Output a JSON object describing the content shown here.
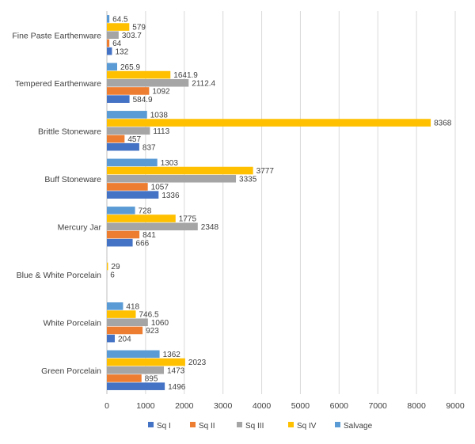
{
  "chart_data": {
    "type": "bar",
    "orientation": "horizontal",
    "categories": [
      "Fine Paste Earthenware",
      "Tempered Earthenware",
      "Brittle Stoneware",
      "Buff Stoneware",
      "Mercury Jar",
      "Blue & White Porcelain",
      "White Porcelain",
      "Green Porcelain"
    ],
    "series": [
      {
        "name": "Sq I",
        "color": "#4472C4",
        "values": [
          132,
          584.9,
          837,
          1336,
          666,
          null,
          204,
          1496
        ],
        "labels": [
          "132",
          "584.9",
          "837",
          "1336",
          "666",
          "",
          "204",
          "1496"
        ]
      },
      {
        "name": "Sq II",
        "color": "#ED7D31",
        "values": [
          64,
          1092,
          457,
          1057,
          841,
          null,
          923,
          895
        ],
        "labels": [
          "64",
          "1092",
          "457",
          "1057",
          "841",
          "",
          "923",
          "895"
        ]
      },
      {
        "name": "Sq III",
        "color": "#A5A5A5",
        "values": [
          303.7,
          2112.4,
          1113,
          3335,
          2348,
          6,
          1060,
          1473
        ],
        "labels": [
          "303.7",
          "2112.4",
          "1113",
          "3335",
          "2348",
          "6",
          "1060",
          "1473"
        ]
      },
      {
        "name": "Sq IV",
        "color": "#FFC000",
        "values": [
          579,
          1641.9,
          8368,
          3777,
          1775,
          29,
          746.5,
          2023
        ],
        "labels": [
          "579",
          "1641.9",
          "8368",
          "3777",
          "1775",
          "29",
          "746.5",
          "2023"
        ]
      },
      {
        "name": "Salvage",
        "color": "#5B9BD5",
        "values": [
          64.5,
          265.9,
          1038,
          1303,
          728,
          null,
          418,
          1362
        ],
        "labels": [
          "64.5",
          "265.9",
          "1038",
          "1303",
          "728",
          "",
          "418",
          "1362"
        ]
      }
    ],
    "xlim": [
      0,
      9000
    ],
    "xticks": [
      0,
      1000,
      2000,
      3000,
      4000,
      5000,
      6000,
      7000,
      8000,
      9000
    ],
    "xtick_labels": [
      "0",
      "1000",
      "2000",
      "3000",
      "4000",
      "5000",
      "6000",
      "7000",
      "8000",
      "9000"
    ],
    "grid": "vertical",
    "legend_position": "bottom"
  }
}
